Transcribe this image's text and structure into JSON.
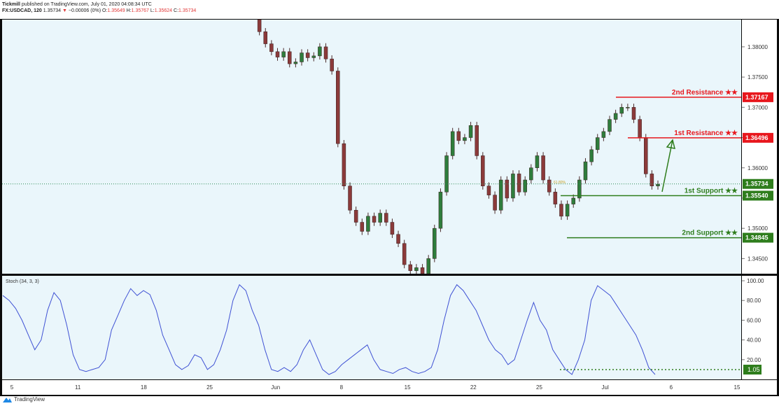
{
  "header": {
    "author": "Tickmill",
    "published": "published on TradingView.com, July 01, 2020 04:08:34 UTC",
    "symbol": "FX:USDCAD, 120",
    "last": "1.35734",
    "change": "−0.00006 (0%)",
    "o_label": "O:",
    "o": "1.35649",
    "h_label": "H:",
    "h": "1.35767",
    "l_label": "L:",
    "l": "1.35624",
    "c_label": "C:",
    "c": "1.35734"
  },
  "brand": "TradingView",
  "colors": {
    "background": "#eaf6fb",
    "resistance": "#e8171d",
    "support": "#2e7d1c",
    "stoch": "#3f51d4",
    "candle": "#6b2f2f"
  },
  "chart_data": [
    {
      "type": "line",
      "subtype": "candlestick",
      "instrument": "USDCAD",
      "x_ticks": [
        "5",
        "11",
        "18",
        "25",
        "Jun",
        "8",
        "15",
        "22",
        "25",
        "Jul",
        "6",
        "15"
      ],
      "y_ticks": [
        "1.38000",
        "1.37500",
        "1.37000",
        "1.36500",
        "1.36000",
        "1.35500",
        "1.35000",
        "1.34500"
      ],
      "ylim": [
        1.3425,
        1.3845
      ],
      "series": [
        {
          "values": [
            1.3845,
            1.3825,
            1.3805,
            1.3792,
            1.3783,
            1.3792,
            1.3772,
            1.3775,
            1.379,
            1.3782,
            1.3785,
            1.38,
            1.378,
            1.376,
            1.364,
            1.357,
            1.353,
            1.351,
            1.3495,
            1.352,
            1.351,
            1.3525,
            1.351,
            1.349,
            1.3475,
            1.344,
            1.343,
            1.3435,
            1.3425,
            1.345,
            1.35,
            1.356,
            1.362,
            1.366,
            1.3645,
            1.365,
            1.367,
            1.362,
            1.357,
            1.3555,
            1.353,
            1.358,
            1.355,
            1.359,
            1.356,
            1.358,
            1.36,
            1.362,
            1.358,
            1.356,
            1.354,
            1.352,
            1.354,
            1.355,
            1.358,
            1.361,
            1.363,
            1.365,
            1.366,
            1.368,
            1.369,
            1.37,
            1.37,
            1.368,
            1.365,
            1.359,
            1.357,
            1.3573
          ]
        }
      ],
      "levels": [
        {
          "label": "2nd Resistance ★★",
          "tag": "1.37167",
          "value": 1.37167,
          "kind": "resistance"
        },
        {
          "label": "1st Resistance ★★",
          "tag": "1.36496",
          "value": 1.36496,
          "kind": "resistance"
        },
        {
          "label": "",
          "tag": "1.35734",
          "value": 1.35734,
          "kind": "last"
        },
        {
          "label": "1st Support ★★",
          "tag": "1.35540",
          "value": 1.3554,
          "kind": "support"
        },
        {
          "label": "2nd Support ★★",
          "tag": "1.34845",
          "value": 1.34845,
          "kind": "support"
        }
      ],
      "fib_label": "61.80%",
      "grid": false
    },
    {
      "type": "line",
      "title": "Stoch (34, 3, 3)",
      "y_ticks": [
        "100.00",
        "80.00",
        "60.00",
        "40.00",
        "20.00"
      ],
      "ylim": [
        0,
        105
      ],
      "series": [
        {
          "values": [
            85,
            80,
            72,
            60,
            45,
            30,
            40,
            70,
            88,
            80,
            55,
            25,
            10,
            8,
            10,
            12,
            20,
            50,
            65,
            80,
            92,
            85,
            90,
            86,
            70,
            45,
            30,
            15,
            10,
            14,
            25,
            22,
            10,
            15,
            30,
            50,
            80,
            96,
            90,
            70,
            55,
            30,
            10,
            8,
            12,
            8,
            15,
            30,
            40,
            25,
            10,
            5,
            8,
            15,
            20,
            25,
            30,
            35,
            20,
            10,
            8,
            6,
            10,
            12,
            8,
            6,
            8,
            12,
            30,
            60,
            85,
            96,
            90,
            80,
            70,
            55,
            40,
            30,
            25,
            15,
            20,
            40,
            60,
            78,
            60,
            50,
            30,
            20,
            10,
            5,
            20,
            40,
            80,
            95,
            90,
            85,
            75,
            65,
            55,
            45,
            30,
            12,
            5
          ]
        }
      ],
      "last_tag": "1.05"
    }
  ]
}
